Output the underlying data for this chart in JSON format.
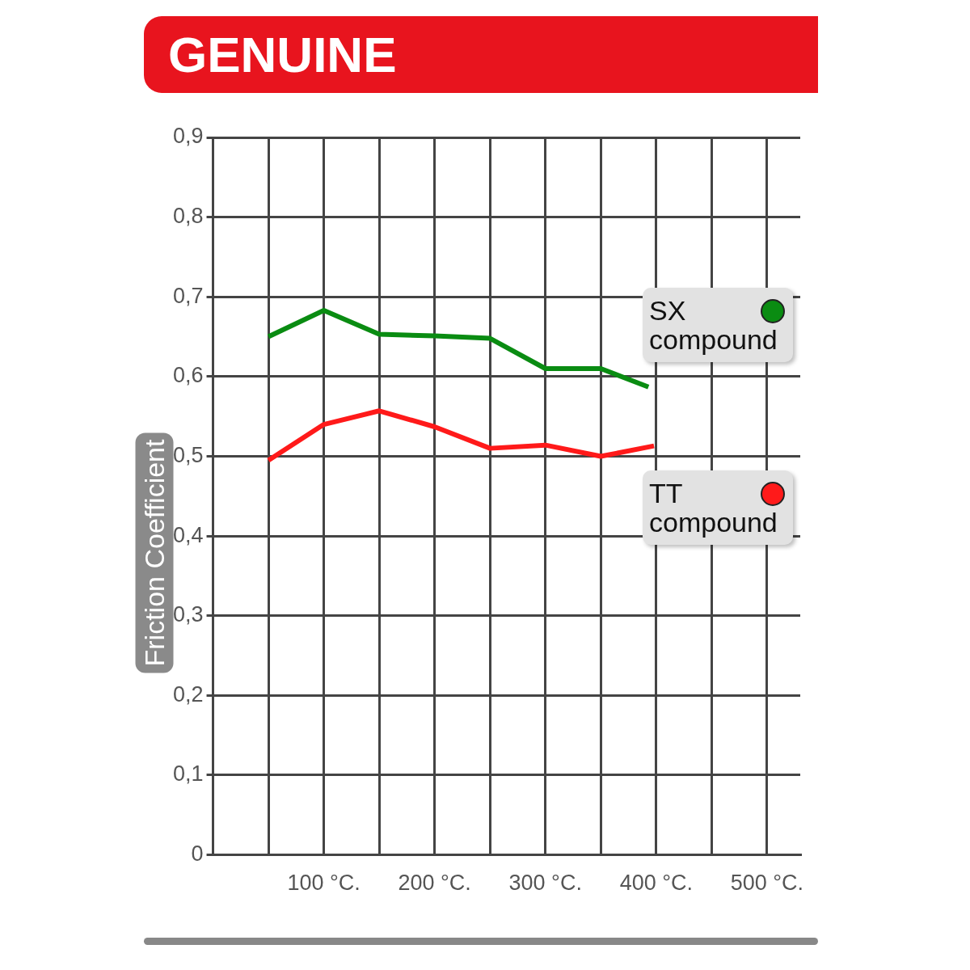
{
  "chart_data": {
    "type": "line",
    "title": "GENUINE",
    "ylabel": "Friction Coefficient",
    "xlim": [
      0,
      530
    ],
    "xticks": [
      {
        "value": 0,
        "label": null
      },
      {
        "value": 50,
        "label": null
      },
      {
        "value": 100,
        "label": "100 °C."
      },
      {
        "value": 150,
        "label": null
      },
      {
        "value": 200,
        "label": "200 °C."
      },
      {
        "value": 250,
        "label": null
      },
      {
        "value": 300,
        "label": "300 °C."
      },
      {
        "value": 350,
        "label": null
      },
      {
        "value": 400,
        "label": "400 °C."
      },
      {
        "value": 450,
        "label": null
      },
      {
        "value": 500,
        "label": "500 °C."
      }
    ],
    "ylim": [
      0,
      0.9
    ],
    "yticks": [
      0,
      {
        "value": 0.1,
        "label": "0,1"
      },
      {
        "value": 0.2,
        "label": "0,2"
      },
      {
        "value": 0.3,
        "label": "0,3"
      },
      {
        "value": 0.4,
        "label": "0,4"
      },
      {
        "value": 0.5,
        "label": "0,5"
      },
      {
        "value": 0.6,
        "label": "0,6"
      },
      {
        "value": 0.7,
        "label": "0,7"
      },
      {
        "value": 0.8,
        "label": "0,8"
      },
      {
        "value": 0.9,
        "label": "0,9"
      }
    ],
    "grid": true,
    "legend": "right",
    "marker": "none",
    "line_style": "solid",
    "series": [
      {
        "name": "SX compound",
        "color": "#0a8c12",
        "x": [
          50,
          100,
          150,
          200,
          250,
          300,
          350,
          393
        ],
        "values": [
          0.65,
          0.683,
          0.653,
          0.651,
          0.648,
          0.61,
          0.61,
          0.587
        ]
      },
      {
        "name": "TT compound",
        "color": "#ff1a1a",
        "x": [
          50,
          100,
          150,
          200,
          250,
          300,
          350,
          398
        ],
        "values": [
          0.495,
          0.54,
          0.557,
          0.537,
          0.51,
          0.514,
          0.5,
          0.513
        ]
      }
    ]
  }
}
